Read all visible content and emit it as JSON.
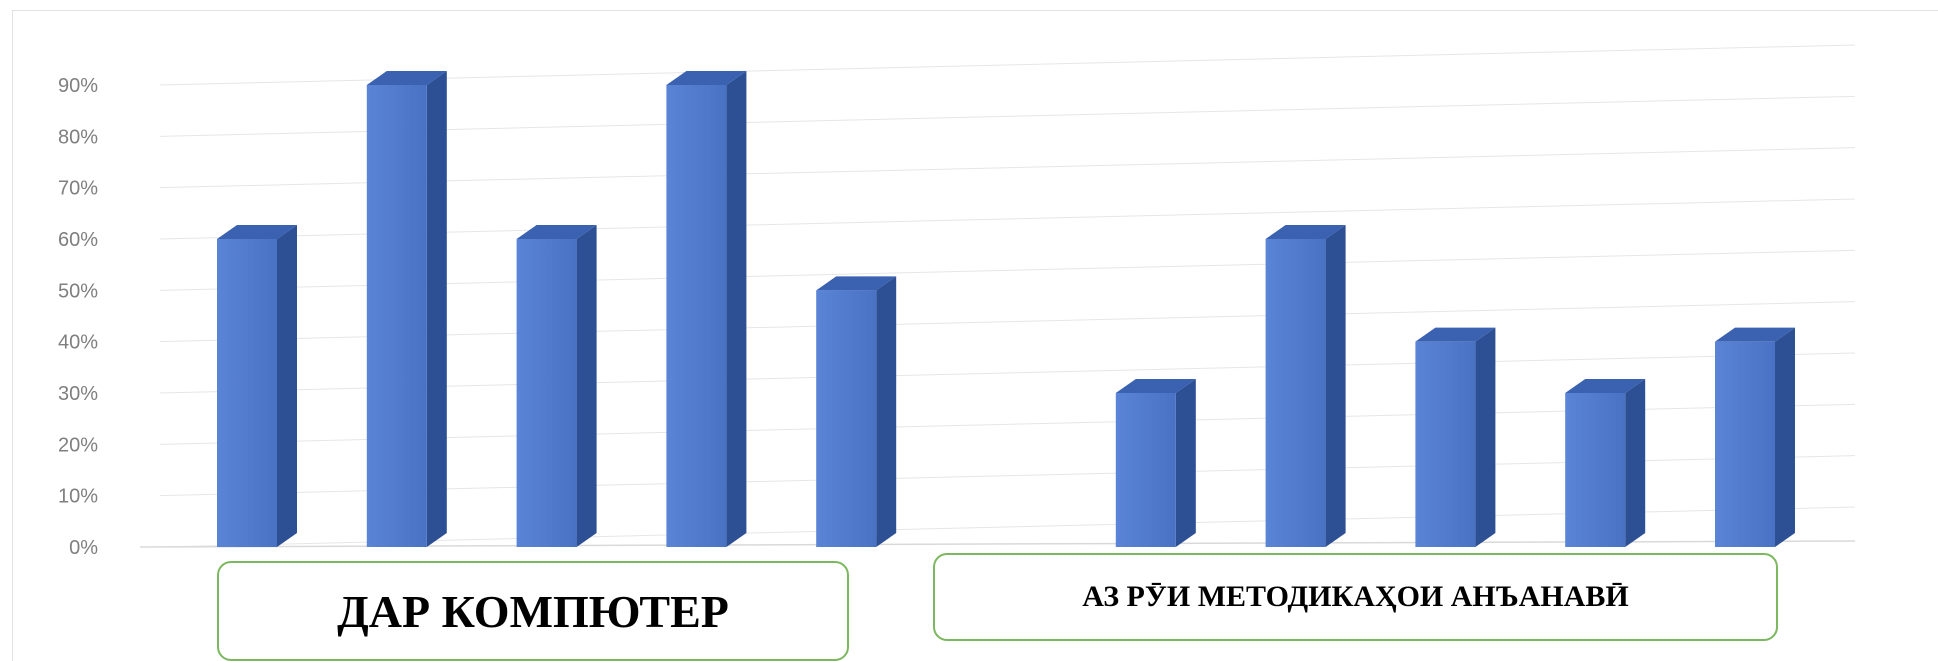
{
  "chart_data": {
    "type": "bar",
    "title": "",
    "xlabel": "",
    "ylabel": "",
    "ylim": [
      0,
      0.9
    ],
    "y_ticks": [
      "0%",
      "10%",
      "20%",
      "30%",
      "40%",
      "50%",
      "60%",
      "70%",
      "80%",
      "90%"
    ],
    "grid": true,
    "legend": "none",
    "series": [
      {
        "values": [
          0.6,
          0.9,
          0.6,
          0.9,
          0.5,
          null,
          0.3,
          0.6,
          0.4,
          0.3,
          0.4
        ]
      }
    ],
    "group_labels": [
      "ДАР КОМПЮТЕР",
      "АЗ РӮИ МЕТОДИКАҲОИ АНЪАНАВӢ"
    ],
    "colors": {
      "bar_front": "#4a72c4",
      "bar_side": "#2d4f94",
      "bar_top": "#3a62b0",
      "grid": "#e6e6e6",
      "tick_text": "#7f7f7f",
      "box_border": "#7cb85f"
    }
  }
}
